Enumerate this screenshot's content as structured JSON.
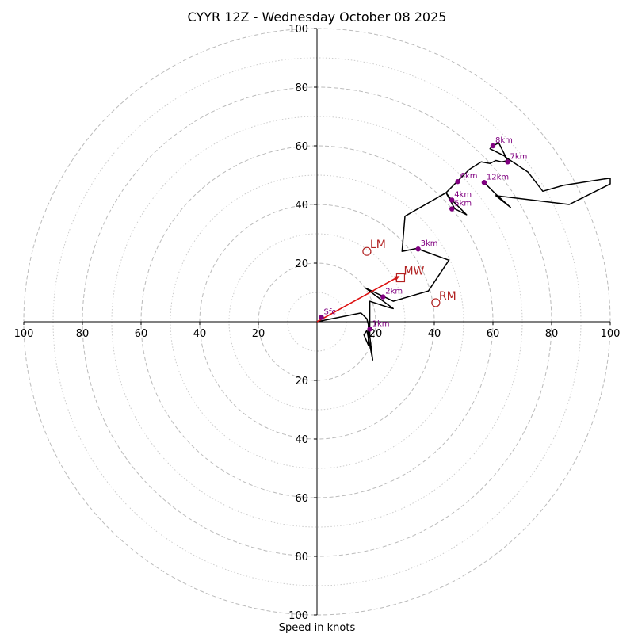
{
  "chart_data": {
    "type": "scatter",
    "subtype": "hodograph",
    "title": "CYYR 12Z - Wednesday October 08 2025",
    "xlabel": "Speed in knots",
    "range_max": 100,
    "ring_labels": [
      "20",
      "40",
      "60",
      "80",
      "100"
    ],
    "ring_values": [
      20,
      40,
      60,
      80,
      100
    ],
    "minor_ring_values": [
      10,
      30,
      50,
      70,
      90
    ],
    "grid": true,
    "colors": {
      "trace": "#000000",
      "points": "#800080",
      "motion": "#b22222",
      "arrow": "#dd1111",
      "grid": "#bbbbbb"
    },
    "trace": [
      [
        0,
        0
      ],
      [
        15,
        3
      ],
      [
        17,
        1
      ],
      [
        17.5,
        -1
      ],
      [
        17.5,
        -8
      ],
      [
        16,
        -4.5
      ],
      [
        17,
        -3
      ],
      [
        19,
        -13
      ],
      [
        18,
        -5
      ],
      [
        18,
        7
      ],
      [
        24,
        5
      ],
      [
        26,
        4.5
      ],
      [
        16.5,
        11.5
      ],
      [
        24,
        8
      ],
      [
        26,
        7
      ],
      [
        38,
        10.5
      ],
      [
        45,
        21
      ],
      [
        34,
        25
      ],
      [
        29,
        24
      ],
      [
        30,
        36
      ],
      [
        44,
        44
      ],
      [
        47,
        38.5
      ],
      [
        51,
        36.5
      ],
      [
        45.5,
        42
      ],
      [
        44,
        44
      ],
      [
        48,
        48
      ],
      [
        52,
        52
      ],
      [
        56,
        54.5
      ],
      [
        59,
        54
      ],
      [
        61,
        55
      ],
      [
        63,
        54.5
      ],
      [
        65,
        55
      ],
      [
        64,
        56.5
      ],
      [
        59,
        59
      ],
      [
        60,
        60
      ],
      [
        62,
        61
      ],
      [
        64.5,
        56
      ],
      [
        72,
        51
      ],
      [
        77,
        44.5
      ],
      [
        84,
        46.5
      ],
      [
        100,
        49
      ],
      [
        100,
        47
      ],
      [
        86,
        40
      ],
      [
        61,
        43
      ],
      [
        66,
        39
      ],
      [
        61,
        43.5
      ],
      [
        57,
        47.5
      ]
    ],
    "points": [
      {
        "label": "Sfc",
        "u": 1.5,
        "v": 1.5
      },
      {
        "label": "1km",
        "u": 18,
        "v": -2.5
      },
      {
        "label": "2km",
        "u": 22.5,
        "v": 8.5
      },
      {
        "label": "3km",
        "u": 34.5,
        "v": 24.8
      },
      {
        "label": "4km",
        "u": 46,
        "v": 41.5
      },
      {
        "label": "5km",
        "u": 46,
        "v": 38.5
      },
      {
        "label": "6km",
        "u": 48,
        "v": 47.8
      },
      {
        "label": "7km",
        "u": 65,
        "v": 54.5
      },
      {
        "label": "8km",
        "u": 60,
        "v": 60
      },
      {
        "label": "12km",
        "u": 57,
        "v": 47.5
      }
    ],
    "storm_motion": [
      {
        "label": "LM",
        "u": 17,
        "v": 24,
        "marker": "circle"
      },
      {
        "label": "MW",
        "u": 28.5,
        "v": 15,
        "marker": "square"
      },
      {
        "label": "RM",
        "u": 40.5,
        "v": 6.5,
        "marker": "circle"
      }
    ],
    "shear_arrow": {
      "from": [
        0,
        0
      ],
      "to": [
        28,
        15.5
      ]
    }
  }
}
